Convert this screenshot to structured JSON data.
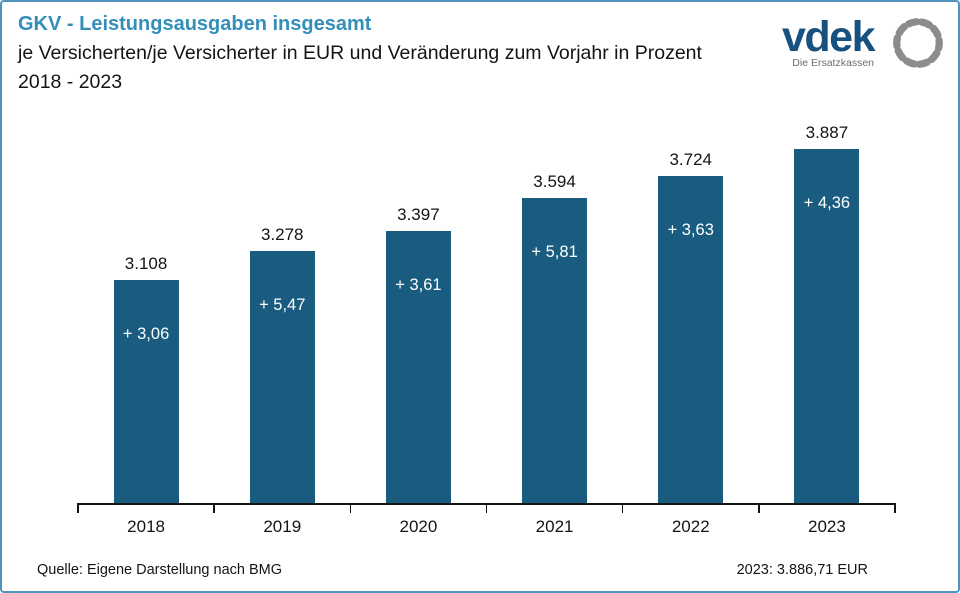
{
  "header": {
    "title": "GKV - Leistungsausgaben insgesamt",
    "subtitle": "je Versicherten/je Versicherter in EUR und Veränderung zum Vorjahr in Prozent",
    "period": "2018 - 2023",
    "title_color": "#338fba"
  },
  "logo": {
    "brand": "vdek",
    "tagline": "Die Ersatzkassen",
    "brand_color": "#17517f",
    "ring_color": "#8c8c8c"
  },
  "chart_data": {
    "type": "bar",
    "title": "GKV - Leistungsausgaben insgesamt je Versicherten/je Versicherter in EUR und Veränderung zum Vorjahr in Prozent 2018 - 2023",
    "categories": [
      "2018",
      "2019",
      "2020",
      "2021",
      "2022",
      "2023"
    ],
    "series": [
      {
        "name": "Leistungsausgaben je Versicherten in EUR",
        "values": [
          3108,
          3278,
          3397,
          3594,
          3724,
          3887
        ]
      },
      {
        "name": "Veränderung zum Vorjahr in Prozent",
        "values": [
          3.06,
          5.47,
          3.61,
          5.81,
          3.63,
          4.36
        ]
      }
    ],
    "value_labels": [
      "3.108",
      "3.278",
      "3.397",
      "3.594",
      "3.724",
      "3.887"
    ],
    "change_labels": [
      "+ 3,06",
      "+ 5,47",
      "+ 3,61",
      "+ 5,81",
      "+ 3,63",
      "+ 4,36"
    ],
    "bar_color": "#1a5c80",
    "xlabel": "",
    "ylabel": "",
    "grid": false,
    "legend": false,
    "zero_based": false
  },
  "footer": {
    "source": "Quelle: Eigene Darstellung nach BMG",
    "note_2023": "2023: 3.886,71 EUR"
  },
  "frame": {
    "border_color": "#4e94bc"
  }
}
